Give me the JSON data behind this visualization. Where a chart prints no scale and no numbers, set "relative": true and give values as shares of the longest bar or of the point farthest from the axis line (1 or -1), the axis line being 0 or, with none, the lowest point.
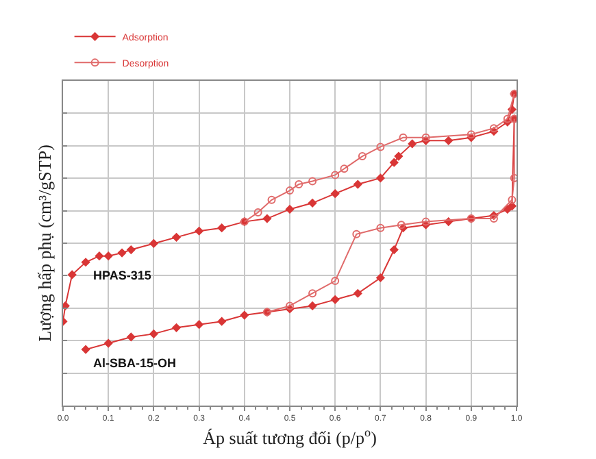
{
  "chart_data": {
    "type": "line",
    "relative": true,
    "xlabel": "Áp suất tương đối (p/p$^{o}$)",
    "ylabel": "Lượng hấp phụ (cm³/gSTP)",
    "xlim": [
      0,
      1
    ],
    "xticks": [
      {
        "value": 0,
        "label": "0.0"
      },
      {
        "value": 0.1,
        "label": "0.1"
      },
      {
        "value": 0.2,
        "label": "0.2"
      },
      {
        "value": 0.3,
        "label": "0.3"
      },
      {
        "value": 0.4,
        "label": "0.4"
      },
      {
        "value": 0.5,
        "label": "0.5"
      },
      {
        "value": 0.6,
        "label": "0.6"
      },
      {
        "value": 0.7,
        "label": "0.7"
      },
      {
        "value": 0.8,
        "label": "0.8"
      },
      {
        "value": 0.9,
        "label": "0.9"
      },
      {
        "value": 1,
        "label": "1.0"
      }
    ],
    "grid": true,
    "legend": "top left",
    "tick_labels": "x",
    "annotations": [
      "HPAS-315",
      "Al-SBA-15-OH"
    ],
    "series": [
      {
        "name": "Adsorption",
        "color": "#d93636",
        "marker": "diamond",
        "x": [
          0,
          0.005,
          0.02,
          0.05,
          0.08,
          0.1,
          0.13,
          0.15,
          0.2,
          0.25,
          0.3,
          0.35,
          0.4,
          0.45,
          0.5,
          0.55,
          0.6,
          0.65,
          0.7,
          0.73,
          0.74,
          0.77,
          0.8,
          0.85,
          0.9,
          0.95,
          0.98,
          0.99,
          0.995
        ],
        "values": [
          0.27,
          0.32,
          0.42,
          0.46,
          0.48,
          0.48,
          0.49,
          0.5,
          0.52,
          0.54,
          0.56,
          0.57,
          0.59,
          0.6,
          0.63,
          0.65,
          0.68,
          0.71,
          0.73,
          0.78,
          0.8,
          0.84,
          0.85,
          0.85,
          0.86,
          0.88,
          0.91,
          0.95,
          1
        ]
      },
      {
        "name": "Desorption",
        "color": "#e06a6a",
        "marker": "circle",
        "x": [
          0.995,
          0.98,
          0.95,
          0.9,
          0.8,
          0.75,
          0.7,
          0.66,
          0.62,
          0.6,
          0.55,
          0.52,
          0.5,
          0.46,
          0.43,
          0.4
        ],
        "values": [
          1,
          0.92,
          0.89,
          0.87,
          0.86,
          0.86,
          0.83,
          0.8,
          0.76,
          0.74,
          0.72,
          0.71,
          0.69,
          0.66,
          0.62,
          0.59
        ]
      },
      {
        "color": "#d93636",
        "marker": "diamond",
        "x": [
          0.05,
          0.1,
          0.15,
          0.2,
          0.25,
          0.3,
          0.35,
          0.4,
          0.45,
          0.5,
          0.55,
          0.6,
          0.65,
          0.7,
          0.73,
          0.75,
          0.8,
          0.85,
          0.9,
          0.95,
          0.98,
          0.99,
          0.995
        ],
        "values": [
          0.18,
          0.2,
          0.22,
          0.23,
          0.25,
          0.26,
          0.27,
          0.29,
          0.3,
          0.31,
          0.32,
          0.34,
          0.36,
          0.41,
          0.5,
          0.57,
          0.58,
          0.59,
          0.6,
          0.61,
          0.63,
          0.64,
          0.92
        ]
      },
      {
        "color": "#e06a6a",
        "marker": "circle",
        "x": [
          0.995,
          0.995,
          0.99,
          0.95,
          0.9,
          0.8,
          0.746,
          0.7,
          0.647,
          0.6,
          0.55,
          0.5,
          0.45
        ],
        "values": [
          0.92,
          0.73,
          0.66,
          0.6,
          0.6,
          0.59,
          0.58,
          0.57,
          0.55,
          0.4,
          0.36,
          0.32,
          0.3
        ]
      }
    ]
  }
}
